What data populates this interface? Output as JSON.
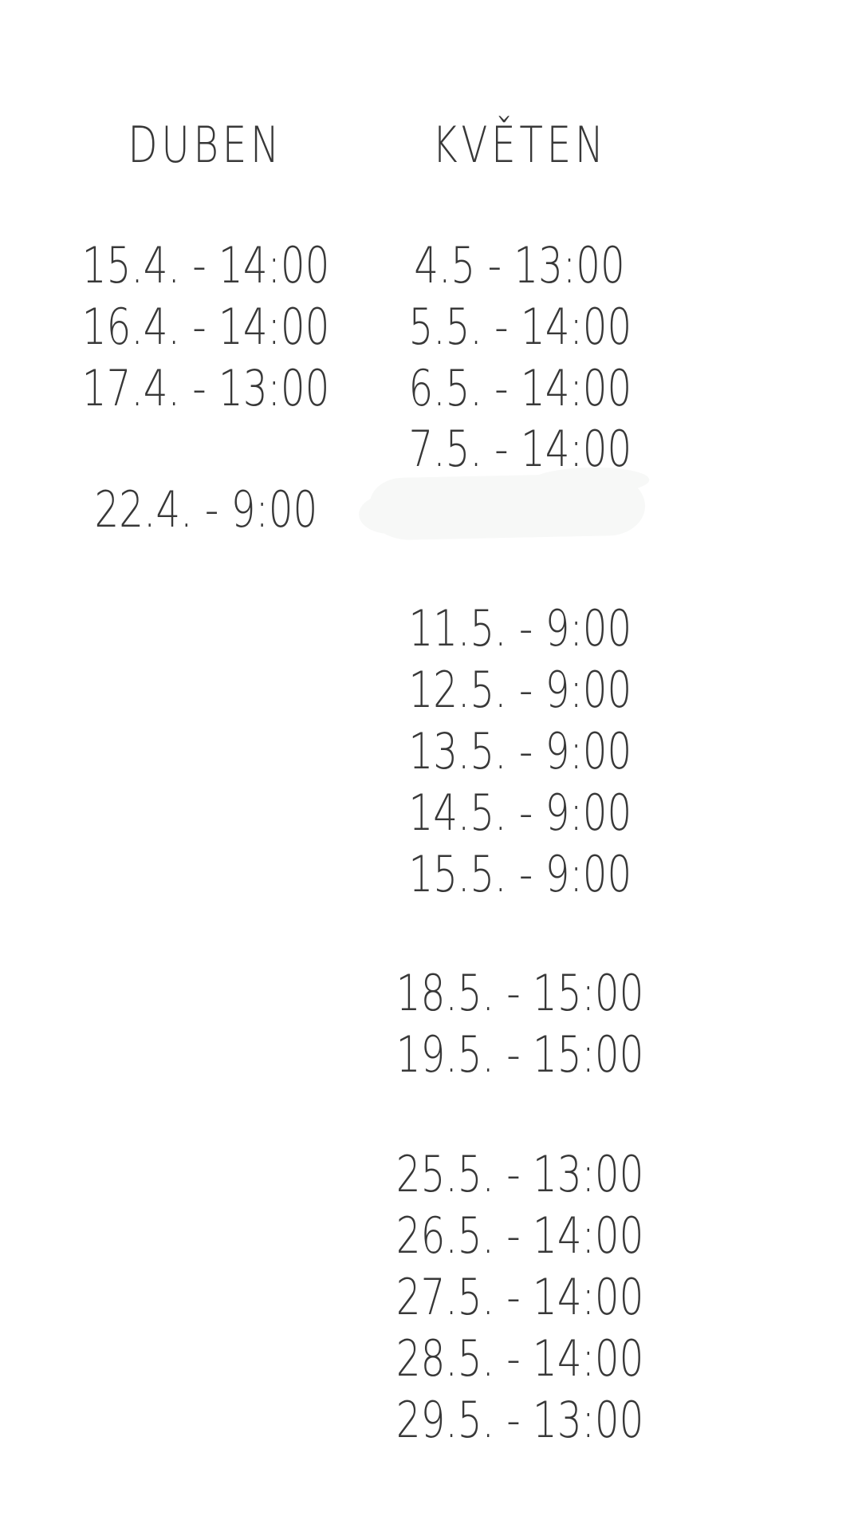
{
  "colors": {
    "background": "#ffffff",
    "text": "#383838",
    "smudge": "#f7f8f7"
  },
  "schedule": {
    "april": {
      "header": "DUBEN",
      "entries": [
        "15.4. - 14:00",
        "16.4. - 14:00",
        "17.4. - 13:00",
        "22.4. - 9:00"
      ]
    },
    "may": {
      "header": "KVĚTEN",
      "entries": [
        "4.5 - 13:00",
        "5.5. - 14:00",
        "6.5. - 14:00",
        "7.5. - 14:00",
        "11.5. - 9:00",
        "12.5. - 9:00",
        "13.5. - 9:00",
        "14.5. - 9:00",
        "15.5. - 9:00",
        "18.5. - 15:00",
        "19.5. - 15:00",
        "25.5. - 13:00",
        "26.5. - 14:00",
        "27.5. - 14:00",
        "28.5. - 14:00",
        "29.5. - 13:00"
      ]
    }
  }
}
